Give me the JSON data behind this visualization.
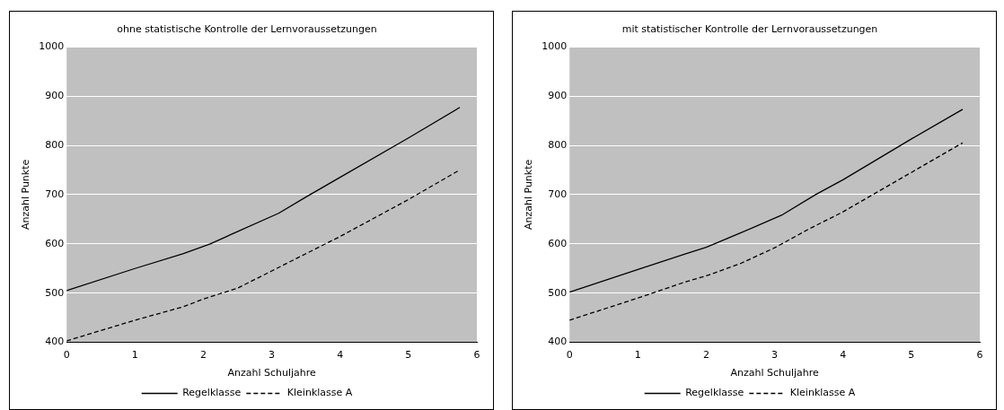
{
  "chart_data": [
    {
      "type": "line",
      "title": "ohne statistische Kontrolle der Lernvoraussetzungen",
      "xlabel": "Anzahl Schuljahre",
      "ylabel": "Anzahl Punkte",
      "xlim": [
        0,
        6
      ],
      "xticks": [
        0,
        1,
        2,
        3,
        4,
        5,
        6
      ],
      "ylim": [
        400,
        1000
      ],
      "yticks": [
        400,
        500,
        600,
        700,
        800,
        900,
        1000
      ],
      "grid": "y",
      "legend": "bottom",
      "marker": "none",
      "series": [
        {
          "name": "Regelklasse",
          "color": "#000000",
          "line_style": "solid",
          "x": [
            0,
            1,
            1.7,
            2.1,
            2.5,
            3.1,
            3.5,
            4,
            5,
            5.75
          ],
          "values": [
            505,
            550,
            580,
            600,
            625,
            662,
            695,
            735,
            815,
            877
          ]
        },
        {
          "name": "Kleinklasse A",
          "color": "#000000",
          "line_style": "dashed",
          "x": [
            0,
            1,
            1.7,
            2,
            2.5,
            3,
            3.5,
            4,
            5,
            5.75
          ],
          "values": [
            403,
            445,
            472,
            488,
            510,
            545,
            580,
            615,
            690,
            750
          ]
        }
      ]
    },
    {
      "type": "line",
      "title": "mit statistischer Kontrolle der Lernvoraussetzungen",
      "xlabel": "Anzahl Schuljahre",
      "ylabel": "Anzahl Punkte",
      "xlim": [
        0,
        6
      ],
      "xticks": [
        0,
        1,
        2,
        3,
        4,
        5,
        6
      ],
      "ylim": [
        400,
        1000
      ],
      "yticks": [
        400,
        500,
        600,
        700,
        800,
        900,
        1000
      ],
      "grid": "y",
      "legend": "bottom",
      "marker": "none",
      "series": [
        {
          "name": "Regelklasse",
          "color": "#000000",
          "line_style": "solid",
          "x": [
            0,
            1,
            1.7,
            2,
            2.5,
            3.1,
            3.6,
            4,
            5,
            5.75
          ],
          "values": [
            502,
            548,
            580,
            593,
            622,
            658,
            700,
            730,
            813,
            873
          ]
        },
        {
          "name": "Kleinklasse A",
          "color": "#000000",
          "line_style": "dashed",
          "x": [
            0,
            1,
            1.7,
            2,
            2.5,
            3,
            3.5,
            4,
            5,
            5.75
          ],
          "values": [
            445,
            490,
            523,
            535,
            560,
            592,
            630,
            665,
            745,
            805
          ]
        }
      ]
    }
  ]
}
